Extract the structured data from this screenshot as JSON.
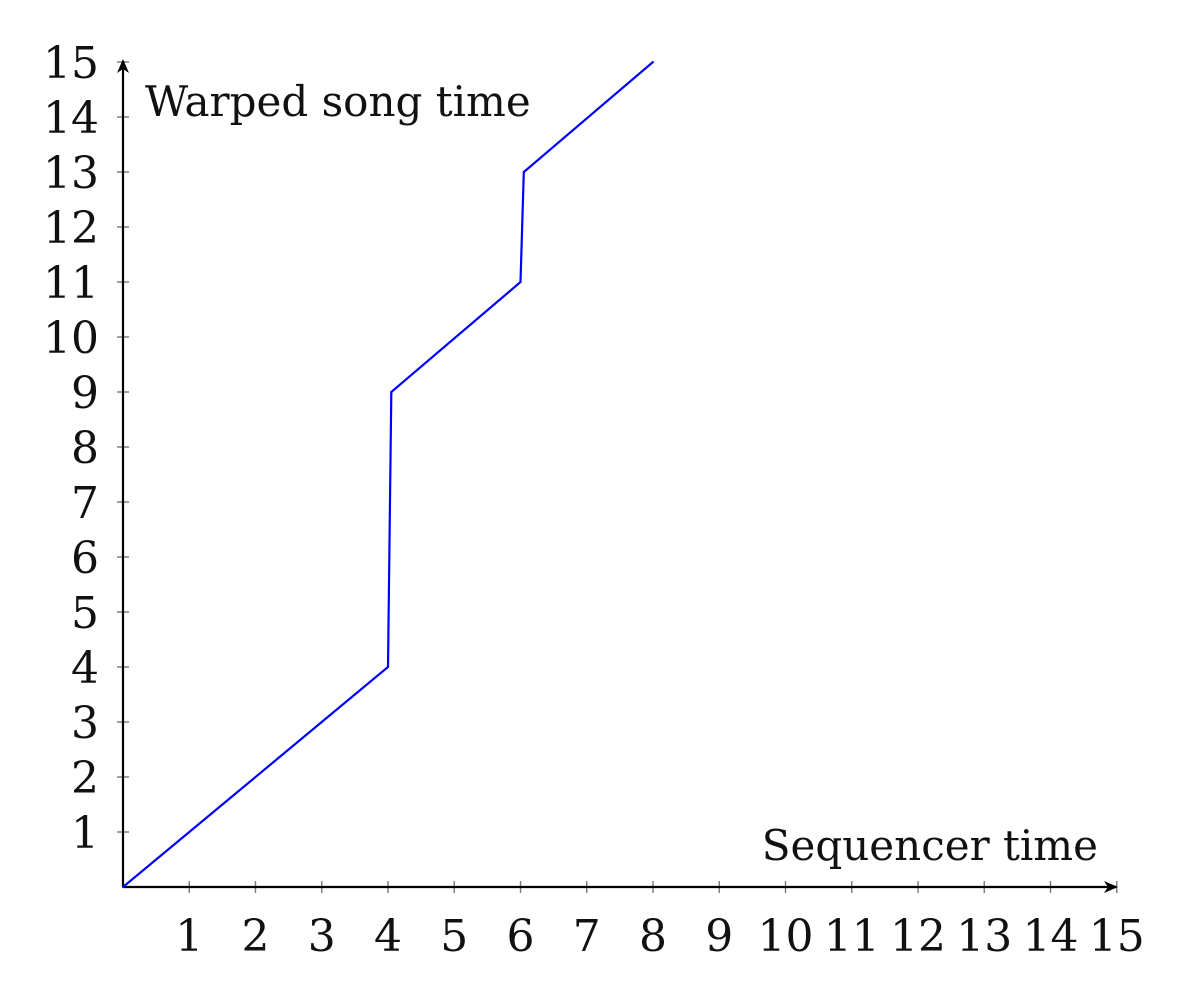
{
  "chart_data": {
    "type": "line",
    "xlabel": "Sequencer time",
    "ylabel": "Warped song time",
    "xlim": [
      0,
      15
    ],
    "ylim": [
      0,
      15
    ],
    "x_ticks": [
      "1",
      "2",
      "3",
      "4",
      "5",
      "6",
      "7",
      "8",
      "9",
      "10",
      "11",
      "12",
      "13",
      "14",
      "15"
    ],
    "y_ticks": [
      "1",
      "2",
      "3",
      "4",
      "5",
      "6",
      "7",
      "8",
      "9",
      "10",
      "11",
      "12",
      "13",
      "14",
      "15"
    ],
    "grid": false,
    "series": [
      {
        "x": [
          0,
          4,
          4.05,
          6,
          6.05,
          8
        ],
        "y": [
          0,
          4,
          9,
          11,
          13,
          15
        ],
        "color": "#0000ff"
      }
    ],
    "axis_color": "#000000"
  }
}
